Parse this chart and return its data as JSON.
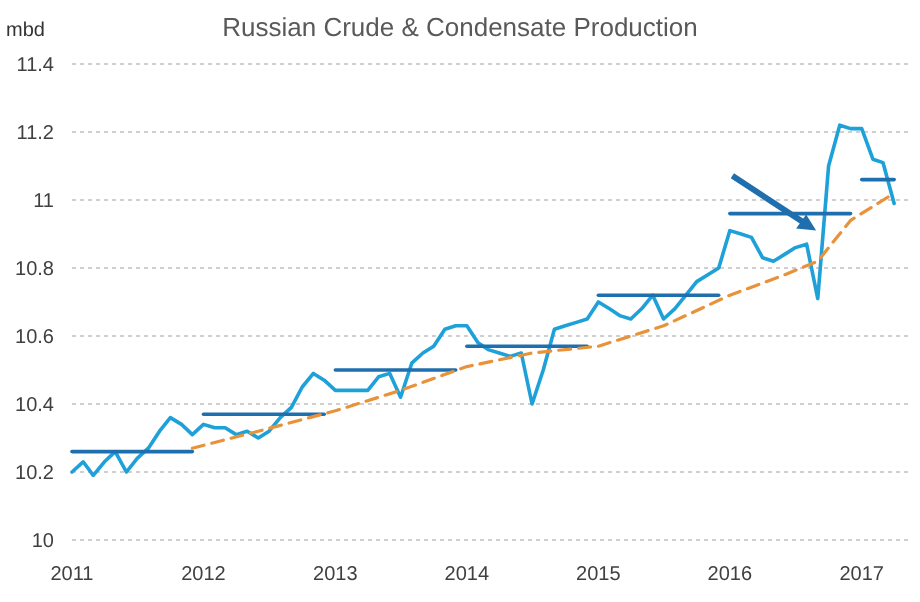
{
  "chart_data": {
    "type": "line",
    "title": "Russian Crude & Condensate Production",
    "ylabel": "mbd",
    "xlim": [
      "2011-01-01",
      "2017-05-15"
    ],
    "xticks": [
      {
        "value": "2011-01-01",
        "label": "2011"
      },
      {
        "value": "2012-01-01",
        "label": "2012"
      },
      {
        "value": "2013-01-01",
        "label": "2013"
      },
      {
        "value": "2014-01-01",
        "label": "2014"
      },
      {
        "value": "2015-01-01",
        "label": "2015"
      },
      {
        "value": "2016-01-01",
        "label": "2016"
      },
      {
        "value": "2017-01-01",
        "label": "2017"
      }
    ],
    "ylim": [
      10,
      11.4
    ],
    "yticks": [
      10,
      10.2,
      10.4,
      10.6,
      10.8,
      11,
      11.2,
      11.4
    ],
    "grid": "y",
    "series": [
      {
        "color": "#1ea0d9",
        "line_style": "solid",
        "x": [
          "2011-01",
          "2011-02",
          "2011-03",
          "2011-04",
          "2011-05",
          "2011-06",
          "2011-07",
          "2011-08",
          "2011-09",
          "2011-10",
          "2011-11",
          "2011-12",
          "2012-01",
          "2012-02",
          "2012-03",
          "2012-04",
          "2012-05",
          "2012-06",
          "2012-07",
          "2012-08",
          "2012-09",
          "2012-10",
          "2012-11",
          "2012-12",
          "2013-01",
          "2013-02",
          "2013-03",
          "2013-04",
          "2013-05",
          "2013-06",
          "2013-07",
          "2013-08",
          "2013-09",
          "2013-10",
          "2013-11",
          "2013-12",
          "2014-01",
          "2014-02",
          "2014-03",
          "2014-04",
          "2014-05",
          "2014-06",
          "2014-07",
          "2014-08",
          "2014-09",
          "2014-10",
          "2014-11",
          "2014-12",
          "2015-01",
          "2015-02",
          "2015-03",
          "2015-04",
          "2015-05",
          "2015-06",
          "2015-07",
          "2015-08",
          "2015-09",
          "2015-10",
          "2015-11",
          "2015-12",
          "2016-01",
          "2016-02",
          "2016-03",
          "2016-04",
          "2016-05",
          "2016-06",
          "2016-07",
          "2016-08",
          "2016-09",
          "2016-10",
          "2016-11",
          "2016-12",
          "2017-01",
          "2017-02",
          "2017-03",
          "2017-04"
        ],
        "values": [
          10.2,
          10.23,
          10.19,
          10.23,
          10.26,
          10.2,
          10.24,
          10.27,
          10.32,
          10.36,
          10.34,
          10.31,
          10.34,
          10.33,
          10.33,
          10.31,
          10.32,
          10.3,
          10.32,
          10.36,
          10.39,
          10.45,
          10.49,
          10.47,
          10.44,
          10.44,
          10.44,
          10.44,
          10.48,
          10.49,
          10.42,
          10.52,
          10.55,
          10.57,
          10.62,
          10.63,
          10.63,
          10.58,
          10.56,
          10.55,
          10.54,
          10.55,
          10.4,
          10.5,
          10.62,
          10.63,
          10.64,
          10.65,
          10.7,
          10.68,
          10.66,
          10.65,
          10.68,
          10.72,
          10.65,
          10.68,
          10.72,
          10.76,
          10.78,
          10.8,
          10.91,
          10.9,
          10.89,
          10.83,
          10.82,
          10.84,
          10.86,
          10.87,
          10.71,
          11.1,
          11.22,
          11.21,
          11.21,
          11.12,
          11.11,
          10.99
        ]
      },
      {
        "color": "#1f6fae",
        "line_style": "solid",
        "x": [
          "2011-01",
          "2011-12"
        ],
        "values": [
          10.26,
          10.26
        ]
      },
      {
        "color": "#1f6fae",
        "line_style": "solid",
        "x": [
          "2012-01",
          "2012-12"
        ],
        "values": [
          10.37,
          10.37
        ]
      },
      {
        "color": "#1f6fae",
        "line_style": "solid",
        "x": [
          "2013-01",
          "2013-12"
        ],
        "values": [
          10.5,
          10.5
        ]
      },
      {
        "color": "#1f6fae",
        "line_style": "solid",
        "x": [
          "2014-01",
          "2014-12"
        ],
        "values": [
          10.57,
          10.57
        ]
      },
      {
        "color": "#1f6fae",
        "line_style": "solid",
        "x": [
          "2015-01",
          "2015-12"
        ],
        "values": [
          10.72,
          10.72
        ]
      },
      {
        "color": "#1f6fae",
        "line_style": "solid",
        "x": [
          "2016-01",
          "2016-12"
        ],
        "values": [
          10.96,
          10.96
        ]
      },
      {
        "color": "#1f6fae",
        "line_style": "solid",
        "x": [
          "2017-01",
          "2017-04"
        ],
        "values": [
          11.06,
          11.06
        ]
      },
      {
        "color": "#e8923a",
        "line_style": "dashed",
        "x": [
          "2011-12",
          "2012-06",
          "2013-01",
          "2013-07",
          "2014-01",
          "2014-07",
          "2015-01",
          "2015-07",
          "2016-01",
          "2016-06",
          "2016-09",
          "2016-12",
          "2017-04"
        ],
        "values": [
          10.27,
          10.32,
          10.38,
          10.44,
          10.51,
          10.55,
          10.57,
          10.63,
          10.72,
          10.78,
          10.82,
          10.94,
          11.02
        ]
      }
    ]
  }
}
